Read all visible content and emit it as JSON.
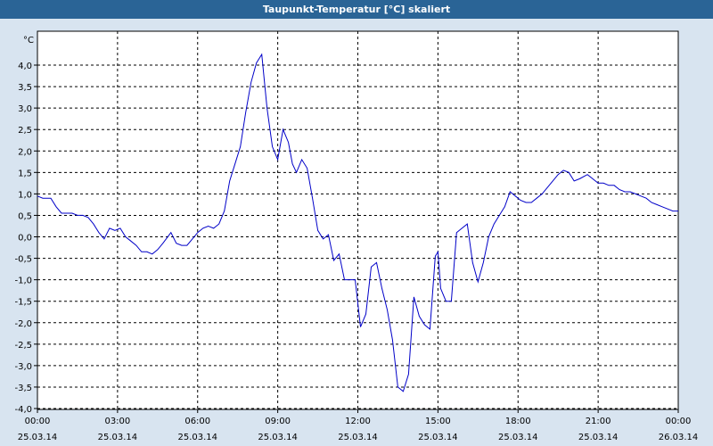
{
  "window": {
    "title": "Taupunkt-Temperatur [°C] skaliert"
  },
  "colors": {
    "titlebar": "#2a6496",
    "background": "#d8e4f0",
    "plot_bg": "#ffffff",
    "line": "#0000c8",
    "grid": "#000000"
  },
  "chart_data": {
    "type": "line",
    "title": "Taupunkt-Temperatur [°C] skaliert",
    "unit": "°C",
    "ylim": [
      -4.0,
      4.5
    ],
    "yticks": [
      4.0,
      3.5,
      3.0,
      2.5,
      2.0,
      1.5,
      1.0,
      0.5,
      0.0,
      -0.5,
      -1.0,
      -1.5,
      -2.0,
      -2.5,
      -3.0,
      -3.5,
      -4.0
    ],
    "ytick_labels": [
      "4,0",
      "3,5",
      "3,0",
      "2,5",
      "2,0",
      "1,5",
      "1,0",
      "0,5",
      "0,0",
      "-0,5",
      "-1,0",
      "-1,5",
      "-2,0",
      "-2,5",
      "-3,0",
      "-3,5",
      "-4,0"
    ],
    "xlim": [
      0,
      24
    ],
    "xticks": [
      {
        "hour": 0,
        "time": "00:00",
        "date": "25.03.14"
      },
      {
        "hour": 3,
        "time": "03:00",
        "date": "25.03.14"
      },
      {
        "hour": 6,
        "time": "06:00",
        "date": "25.03.14"
      },
      {
        "hour": 9,
        "time": "09:00",
        "date": "25.03.14"
      },
      {
        "hour": 12,
        "time": "12:00",
        "date": "25.03.14"
      },
      {
        "hour": 15,
        "time": "15:00",
        "date": "25.03.14"
      },
      {
        "hour": 18,
        "time": "18:00",
        "date": "25.03.14"
      },
      {
        "hour": 21,
        "time": "21:00",
        "date": "25.03.14"
      },
      {
        "hour": 24,
        "time": "00:00",
        "date": "26.03.14"
      }
    ],
    "grid": true,
    "series": [
      {
        "x": [
          0.0,
          0.2,
          0.5,
          0.7,
          0.9,
          1.1,
          1.3,
          1.5,
          1.7,
          1.9,
          2.1,
          2.3,
          2.5,
          2.7,
          2.9,
          3.1,
          3.3,
          3.5,
          3.7,
          3.9,
          4.1,
          4.3,
          4.5,
          4.7,
          5.0,
          5.2,
          5.4,
          5.6,
          5.8,
          6.0,
          6.2,
          6.4,
          6.6,
          6.8,
          7.0,
          7.2,
          7.4,
          7.6,
          7.8,
          8.0,
          8.2,
          8.4,
          8.6,
          8.8,
          9.0,
          9.2,
          9.4,
          9.55,
          9.7,
          9.9,
          10.1,
          10.3,
          10.5,
          10.7,
          10.9,
          11.1,
          11.3,
          11.5,
          11.7,
          11.9,
          12.1,
          12.3,
          12.5,
          12.7,
          12.9,
          13.1,
          13.3,
          13.5,
          13.7,
          13.9,
          14.1,
          14.3,
          14.5,
          14.7,
          14.9,
          15.0,
          15.1,
          15.3,
          15.5,
          15.7,
          15.9,
          16.1,
          16.3,
          16.5,
          16.7,
          16.9,
          17.1,
          17.3,
          17.5,
          17.7,
          17.9,
          18.1,
          18.3,
          18.5,
          18.7,
          18.9,
          19.1,
          19.3,
          19.5,
          19.7,
          19.9,
          20.1,
          20.3,
          20.6,
          20.8,
          21.0,
          21.2,
          21.4,
          21.6,
          21.8,
          22.0,
          22.2,
          22.4,
          22.6,
          22.8,
          23.0,
          23.2,
          23.4,
          23.6,
          23.8,
          24.0
        ],
        "y": [
          0.95,
          0.9,
          0.9,
          0.7,
          0.55,
          0.55,
          0.55,
          0.5,
          0.5,
          0.45,
          0.3,
          0.1,
          -0.05,
          0.2,
          0.15,
          0.2,
          0.0,
          -0.1,
          -0.2,
          -0.35,
          -0.35,
          -0.4,
          -0.3,
          -0.15,
          0.1,
          -0.15,
          -0.2,
          -0.2,
          -0.05,
          0.1,
          0.2,
          0.25,
          0.2,
          0.3,
          0.6,
          1.3,
          1.7,
          2.1,
          2.9,
          3.6,
          4.05,
          4.25,
          3.0,
          2.1,
          1.8,
          2.5,
          2.2,
          1.7,
          1.5,
          1.8,
          1.6,
          0.9,
          0.15,
          -0.05,
          0.05,
          -0.55,
          -0.4,
          -1.0,
          -1.0,
          -1.0,
          -2.1,
          -1.8,
          -0.7,
          -0.6,
          -1.2,
          -1.7,
          -2.4,
          -3.5,
          -3.6,
          -3.2,
          -1.4,
          -1.85,
          -2.05,
          -2.15,
          -0.45,
          -0.35,
          -1.2,
          -1.5,
          -1.5,
          0.1,
          0.2,
          0.3,
          -0.6,
          -1.05,
          -0.6,
          0.0,
          0.3,
          0.5,
          0.7,
          1.05,
          0.95,
          0.85,
          0.8,
          0.8,
          0.9,
          1.0,
          1.15,
          1.3,
          1.45,
          1.55,
          1.5,
          1.3,
          1.35,
          1.45,
          1.35,
          1.25,
          1.25,
          1.2,
          1.2,
          1.1,
          1.05,
          1.05,
          1.0,
          0.95,
          0.9,
          0.8,
          0.75,
          0.7,
          0.65,
          0.6,
          0.6
        ]
      }
    ]
  }
}
